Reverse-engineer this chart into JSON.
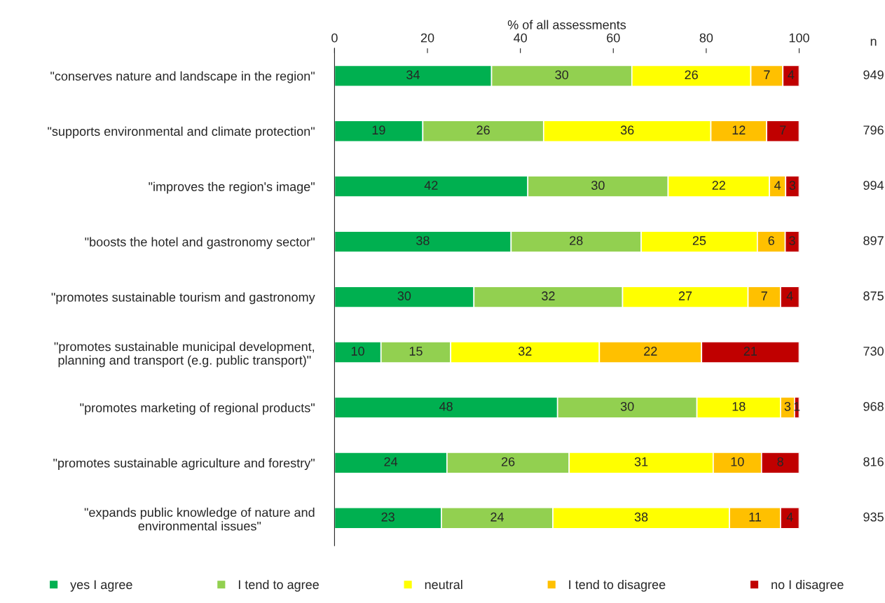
{
  "chart_data": {
    "type": "bar",
    "orientation": "horizontal",
    "stacked": true,
    "xlabel": "% of all assessments",
    "categories": [
      "\"conserves nature and landscape in the region\"",
      "\"supports environmental and climate protection\"",
      "\"improves the region's image\"",
      "\"boosts the hotel and gastronomy sector\"",
      "\"promotes sustainable tourism and gastronomy",
      "\"promotes sustainable municipal development,\nplanning and transport (e.g. public transport)\"",
      "\"promotes marketing of regional products\"",
      "\"promotes sustainable agriculture and forestry\"",
      "\"expands public knowledge of nature and\nenvironmental issues\""
    ],
    "series": [
      {
        "name": "yes I agree",
        "color": "#00b050",
        "values": [
          33.8,
          19,
          41.6,
          38,
          30,
          10,
          48,
          24.2,
          23
        ],
        "value_labels": [
          "34",
          "19",
          "42",
          "38",
          "30",
          "10",
          "48",
          "24",
          "23"
        ]
      },
      {
        "name": "I tend to agree",
        "color": "#92d050",
        "values": [
          30.2,
          26,
          30.2,
          28,
          32,
          15,
          30,
          26.3,
          24
        ],
        "value_labels": [
          "30",
          "26",
          "30",
          "28",
          "32",
          "15",
          "30",
          "26",
          "24"
        ]
      },
      {
        "name": "neutral",
        "color": "#ffff00",
        "values": [
          25.6,
          36,
          21.8,
          25,
          27,
          32,
          18,
          31.0,
          38
        ],
        "value_labels": [
          "26",
          "36",
          "22",
          "25",
          "27",
          "32",
          "18",
          "31",
          "38"
        ]
      },
      {
        "name": "I tend to disagree",
        "color": "#ffc000",
        "values": [
          6.9,
          12,
          3.5,
          6,
          7,
          22,
          3,
          10.4,
          11
        ],
        "value_labels": [
          "7",
          "12",
          "4",
          "6",
          "7",
          "22",
          "3",
          "10",
          "11"
        ]
      },
      {
        "name": "no I disagree",
        "color": "#c00000",
        "values": [
          3.5,
          7,
          2.9,
          3,
          4,
          21,
          1,
          8.1,
          4
        ],
        "value_labels": [
          "4",
          "7",
          "3",
          "3",
          "4",
          "21",
          "1",
          "8",
          "4"
        ]
      }
    ],
    "xlim": [
      0,
      100
    ],
    "xticks": [
      0,
      20,
      40,
      60,
      80,
      100
    ],
    "grid": false,
    "legend": "bottom",
    "marker": "square",
    "annotations": [
      "n",
      "949",
      "796",
      "994",
      "897",
      "875",
      "730",
      "968",
      "816",
      "935"
    ]
  }
}
